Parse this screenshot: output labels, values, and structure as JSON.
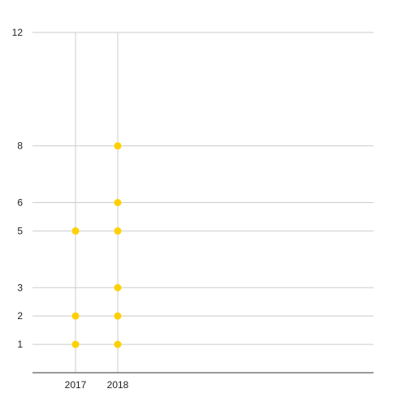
{
  "chart_data": {
    "type": "scatter",
    "title": "",
    "xlabel": "",
    "ylabel": "",
    "x_categories": [
      "2017",
      "2018"
    ],
    "series": [
      {
        "points": [
          {
            "x": "2017",
            "y": 1
          },
          {
            "x": "2017",
            "y": 2
          },
          {
            "x": "2017",
            "y": 5
          },
          {
            "x": "2018",
            "y": 1
          },
          {
            "x": "2018",
            "y": 2
          },
          {
            "x": "2018",
            "y": 3
          },
          {
            "x": "2018",
            "y": 5
          },
          {
            "x": "2018",
            "y": 6
          },
          {
            "x": "2018",
            "y": 8
          }
        ]
      }
    ],
    "y_ticks": [
      1,
      2,
      3,
      5,
      6,
      8,
      12
    ],
    "ylim": [
      0,
      12
    ],
    "grid": true,
    "legend": "none",
    "point_color": "#ffd000",
    "grid_color": "#cccccc"
  }
}
